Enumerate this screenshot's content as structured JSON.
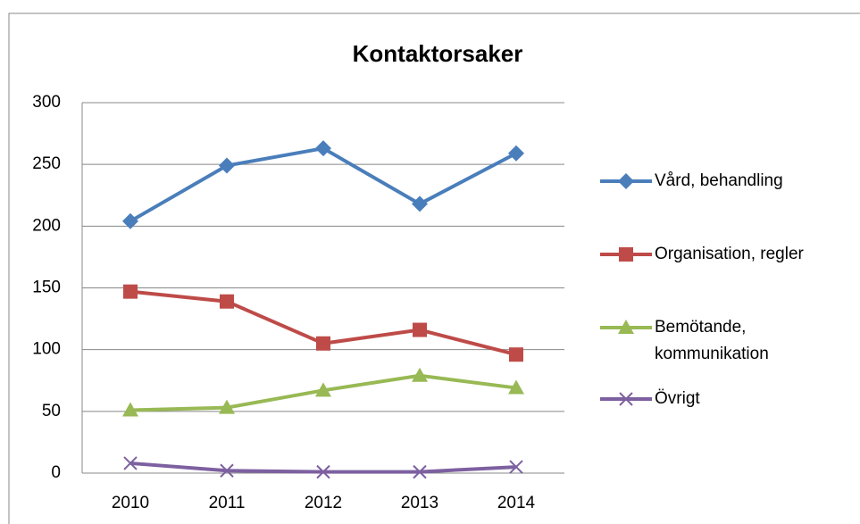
{
  "chart_data": {
    "type": "line",
    "title": "Kontaktorsaker",
    "categories": [
      "2010",
      "2011",
      "2012",
      "2013",
      "2014"
    ],
    "series": [
      {
        "name": "Vård, behandling",
        "color": "#4a7ebb",
        "marker": "diamond",
        "values": [
          204,
          249,
          263,
          218,
          259
        ]
      },
      {
        "name": "Organisation, regler",
        "color": "#be4b48",
        "marker": "square",
        "values": [
          147,
          139,
          105,
          116,
          96
        ]
      },
      {
        "name": "Bemötande, kommunikation",
        "color": "#98b954",
        "marker": "triangle",
        "values": [
          51,
          53,
          67,
          79,
          69
        ]
      },
      {
        "name": "Övrigt",
        "color": "#7d60a0",
        "marker": "x",
        "values": [
          8,
          2,
          1,
          1,
          5
        ]
      }
    ],
    "ylim": [
      0,
      300
    ],
    "yticks": [
      0,
      50,
      100,
      150,
      200,
      250,
      300
    ],
    "grid": true,
    "legend": "right"
  }
}
